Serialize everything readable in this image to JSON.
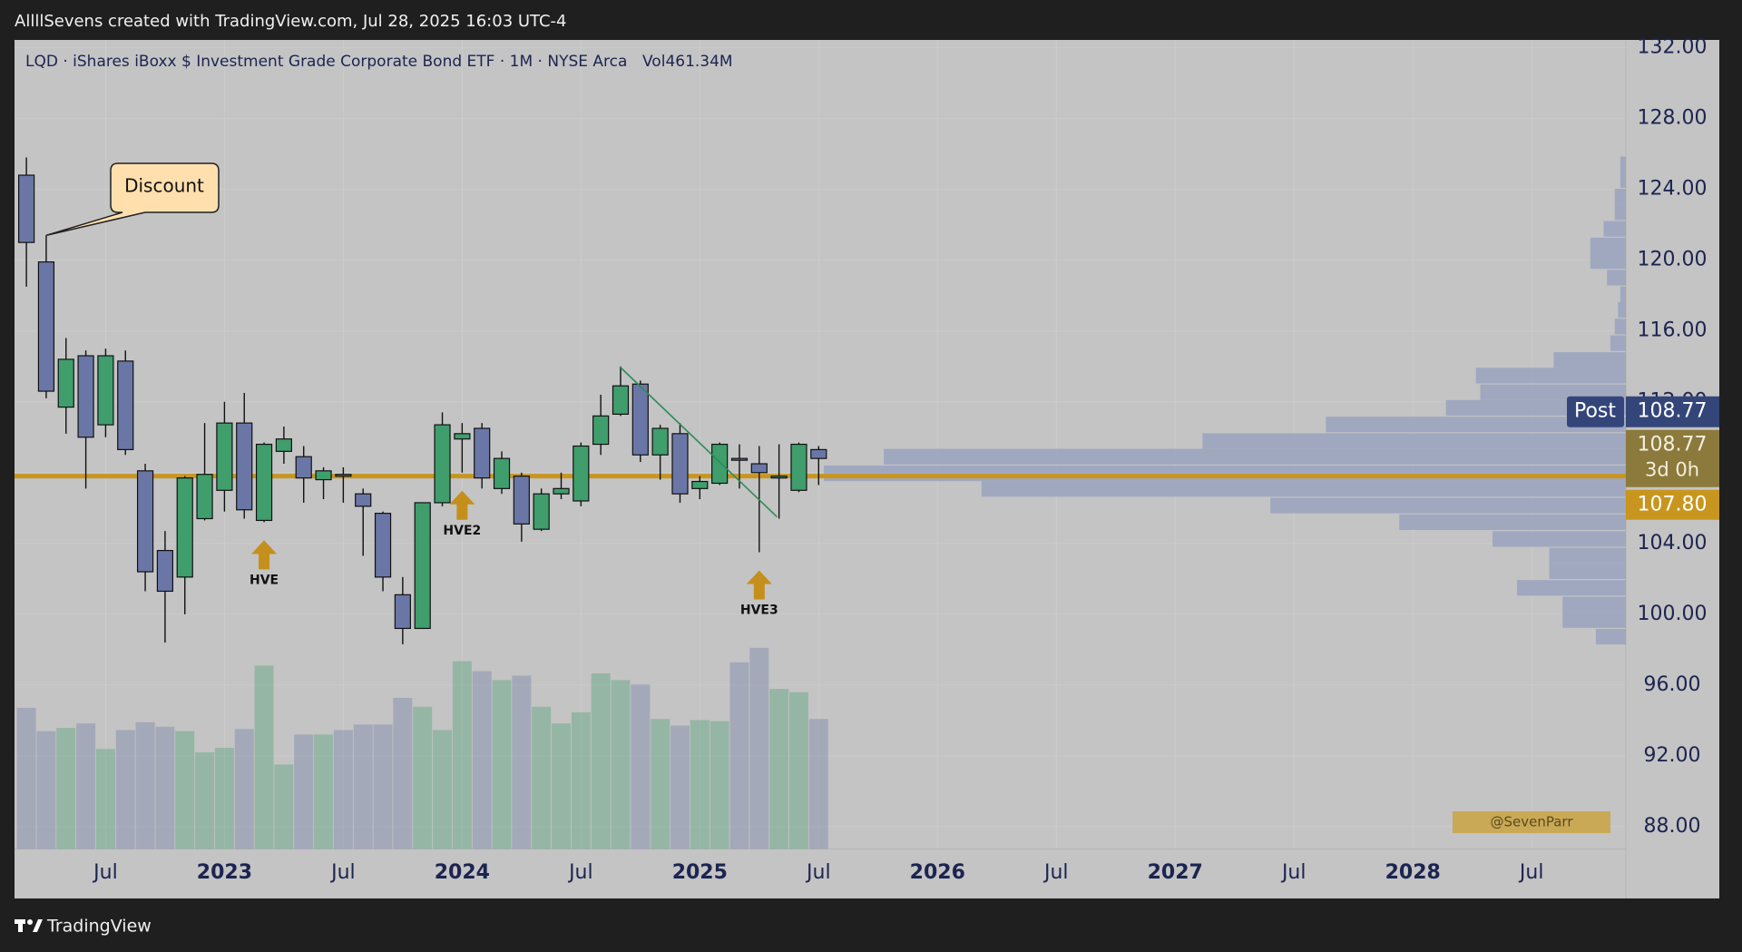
{
  "header": {
    "credit": "AllllSevens created with TradingView.com, Jul 28, 2025 16:03 UTC-4"
  },
  "footer": {
    "brand": "TradingView"
  },
  "chart_data": {
    "type": "candlestick",
    "title": "LQD · iShares iBoxx $ Investment Grade Corporate Bond ETF · 1M · NYSE Arca",
    "volume_label": "Vol",
    "volume_value_label": "461.34M",
    "categories": [
      null,
      null,
      null,
      null,
      "Jul",
      null,
      null,
      null,
      null,
      null,
      "2023",
      null,
      null,
      null,
      null,
      null,
      "Jul",
      null,
      null,
      null,
      null,
      null,
      "2024",
      null,
      null,
      null,
      null,
      null,
      "Jul",
      null,
      null,
      null,
      null,
      null,
      "2025",
      null,
      null,
      null,
      null,
      null,
      "Jul"
    ],
    "future_axis_labels": [
      "2026",
      "Jul",
      "2027",
      "Jul",
      "2028",
      "Jul"
    ],
    "open": [
      124.8,
      119.9,
      111.7,
      114.6,
      110.7,
      114.3,
      108.1,
      103.6,
      102.1,
      105.4,
      107.0,
      110.8,
      105.3,
      109.2,
      108.9,
      107.6,
      107.9,
      106.8,
      105.7,
      101.1,
      99.2,
      106.3,
      109.9,
      110.5,
      107.1,
      107.8,
      104.8,
      106.8,
      106.4,
      109.6,
      111.3,
      113.0,
      109.0,
      110.2,
      107.1,
      107.4,
      108.8,
      108.5,
      107.7,
      107.0,
      109.3
    ],
    "high": [
      125.8,
      121.4,
      115.6,
      114.9,
      115.0,
      114.9,
      108.5,
      104.7,
      107.8,
      110.8,
      112.0,
      112.5,
      109.7,
      110.6,
      109.5,
      108.3,
      108.3,
      107.1,
      105.8,
      102.1,
      106.3,
      111.4,
      110.8,
      110.8,
      109.2,
      108.0,
      107.1,
      108.0,
      109.7,
      112.4,
      114.0,
      113.2,
      110.7,
      110.8,
      107.8,
      109.7,
      109.6,
      109.5,
      109.6,
      109.7,
      109.5
    ],
    "low": [
      118.5,
      112.2,
      110.2,
      107.1,
      110.0,
      109.0,
      101.3,
      98.4,
      100.0,
      105.3,
      105.8,
      105.4,
      105.2,
      108.5,
      106.3,
      106.5,
      106.3,
      103.3,
      101.3,
      98.3,
      99.2,
      106.1,
      108.0,
      107.1,
      106.8,
      104.1,
      104.7,
      106.5,
      106.1,
      109.0,
      111.2,
      108.6,
      107.6,
      106.3,
      106.5,
      107.3,
      107.1,
      103.5,
      105.4,
      106.9,
      107.3
    ],
    "close": [
      121.0,
      112.6,
      114.4,
      110.0,
      114.6,
      109.3,
      102.4,
      101.3,
      107.7,
      107.9,
      110.8,
      105.9,
      109.6,
      109.9,
      107.7,
      108.1,
      107.8,
      106.1,
      102.1,
      99.2,
      106.3,
      110.7,
      110.2,
      107.7,
      108.8,
      105.1,
      106.8,
      107.1,
      109.5,
      111.2,
      112.9,
      109.0,
      110.5,
      106.8,
      107.5,
      109.6,
      108.7,
      108.0,
      107.8,
      109.6,
      108.8
    ],
    "volume": [
      500.8,
      418.0,
      429.8,
      445.6,
      354.9,
      421.9,
      449.5,
      433.7,
      418.0,
      343.0,
      358.8,
      425.8,
      650.6,
      299.7,
      406.1,
      406.1,
      421.9,
      441.6,
      441.6,
      536.2,
      504.7,
      421.9,
      666.4,
      630.9,
      599.3,
      615.1,
      504.7,
      445.6,
      485.0,
      623.0,
      599.3,
      583.6,
      461.3,
      437.7,
      457.4,
      453.4,
      662.4,
      713.7,
      567.8,
      556.0,
      461.34
    ],
    "up_color": "#3f9e6c",
    "down_color": "#6a77a6",
    "ylim": [
      86.74,
      132.44
    ],
    "yticks": [
      {
        "value": 88,
        "label": "88.00"
      },
      {
        "value": 92,
        "label": "92.00"
      },
      {
        "value": 96,
        "label": "96.00"
      },
      {
        "value": 100,
        "label": "100.00"
      },
      {
        "value": 104,
        "label": "104.00"
      },
      {
        "value": 108,
        "label": "108.00"
      },
      {
        "value": 112,
        "label": "112.00"
      },
      {
        "value": 116,
        "label": "116.00"
      },
      {
        "value": 120,
        "label": "120.00"
      },
      {
        "value": 124,
        "label": "124.00"
      },
      {
        "value": 128,
        "label": "128.00"
      },
      {
        "value": 132,
        "label": "132.00"
      }
    ],
    "grid": true,
    "hline": {
      "value": 107.8,
      "label": "107.80",
      "color": "#c8961e"
    },
    "post": {
      "label": "Post",
      "value": 108.77
    },
    "last": {
      "value": 108.77,
      "countdown": "3d 0h"
    },
    "volume_profile": {
      "color": "#9aa3c0",
      "prices": [
        98.73,
        99.67,
        100.55,
        101.49,
        102.43,
        103.31,
        104.25,
        105.2,
        106.14,
        107.08,
        107.96,
        108.9,
        109.78,
        110.72,
        111.66,
        112.54,
        113.48,
        114.36,
        115.31,
        116.25,
        117.19,
        118.07,
        119.01,
        119.95,
        120.83,
        121.77,
        122.71,
        123.59,
        124.53,
        125.41
      ],
      "values": [
        27,
        57,
        57,
        98,
        69,
        69,
        120,
        204,
        320,
        580,
        722,
        668,
        381,
        270,
        162,
        131,
        135,
        65,
        14,
        10,
        7,
        5,
        17,
        32,
        32,
        20,
        10,
        10,
        5,
        5
      ]
    },
    "annotations": [
      {
        "text": "Discount",
        "category_index": 1
      },
      {
        "text": "HVE",
        "category_index": 12
      },
      {
        "text": "HVE2",
        "category_index": 22
      },
      {
        "text": "HVE3",
        "category_index": 37
      }
    ],
    "trendline": {
      "from": [
        29.96,
        113.98
      ],
      "to": [
        37.9,
        105.5
      ],
      "color": "#2e8b57"
    },
    "watermark": "@SevenParr"
  }
}
